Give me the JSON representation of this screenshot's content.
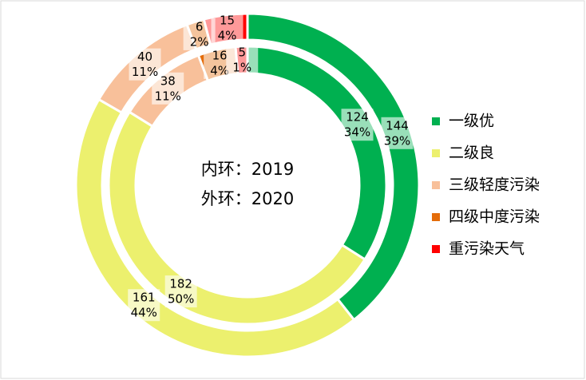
{
  "chart_data": {
    "type": "pie",
    "center_text": [
      "内环：2019",
      "外环：2020"
    ],
    "categories": [
      "一级优",
      "二级良",
      "三级轻度污染",
      "四级中度污染",
      "重污染天气"
    ],
    "colors": [
      "#00b050",
      "#ecf06e",
      "#f8c09a",
      "#e46c0a",
      "#ff0000"
    ],
    "rings": [
      {
        "values": [
          124,
          182,
          38,
          16,
          5
        ],
        "percent_labels": [
          "34%",
          "50%",
          "11%",
          "4%",
          "1%"
        ]
      },
      {
        "values": [
          144,
          161,
          40,
          6,
          15
        ],
        "percent_labels": [
          "39%",
          "44%",
          "11%",
          "2%",
          "4%"
        ]
      }
    ],
    "legend": "right"
  }
}
